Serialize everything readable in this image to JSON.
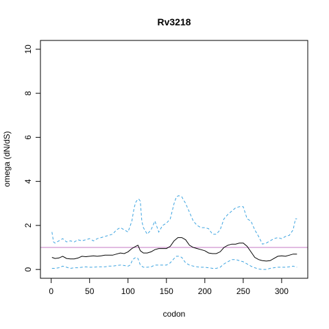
{
  "chart_data": {
    "type": "line",
    "title": "Rv3218",
    "xlabel": "codon",
    "ylabel": "omega (dN/dS)",
    "xlim": [
      -14,
      334
    ],
    "ylim": [
      -0.4,
      10.4
    ],
    "xticks": [
      0,
      50,
      100,
      150,
      200,
      250,
      300
    ],
    "yticks": [
      0,
      2,
      4,
      6,
      8,
      10
    ],
    "reference_line": {
      "y": 1,
      "color": "#c678c6"
    },
    "series": [
      {
        "role": "estimate",
        "color": "#000000",
        "style": "solid",
        "x": [
          1,
          5,
          10,
          15,
          20,
          25,
          30,
          35,
          40,
          45,
          50,
          55,
          60,
          65,
          70,
          75,
          80,
          85,
          90,
          95,
          100,
          105,
          110,
          113,
          116,
          120,
          125,
          130,
          135,
          140,
          145,
          150,
          155,
          160,
          165,
          170,
          175,
          180,
          185,
          190,
          195,
          200,
          205,
          210,
          215,
          220,
          225,
          230,
          235,
          240,
          245,
          250,
          255,
          260,
          265,
          270,
          275,
          280,
          285,
          290,
          295,
          300,
          305,
          310,
          315,
          320
        ],
        "y": [
          0.55,
          0.5,
          0.52,
          0.6,
          0.5,
          0.48,
          0.48,
          0.52,
          0.6,
          0.58,
          0.6,
          0.62,
          0.6,
          0.62,
          0.65,
          0.65,
          0.65,
          0.7,
          0.75,
          0.72,
          0.8,
          0.95,
          1.05,
          1.1,
          0.85,
          0.75,
          0.75,
          0.8,
          0.9,
          0.95,
          0.95,
          0.95,
          1.05,
          1.3,
          1.45,
          1.45,
          1.35,
          1.1,
          1.0,
          0.95,
          0.9,
          0.85,
          0.75,
          0.72,
          0.72,
          0.8,
          1.0,
          1.1,
          1.15,
          1.15,
          1.2,
          1.2,
          1.05,
          0.8,
          0.55,
          0.45,
          0.4,
          0.38,
          0.4,
          0.5,
          0.6,
          0.62,
          0.6,
          0.65,
          0.7,
          0.7
        ]
      },
      {
        "role": "upper_bound",
        "color": "#3ba3e0",
        "style": "dashed",
        "x": [
          1,
          3,
          5,
          10,
          15,
          20,
          25,
          30,
          35,
          40,
          45,
          50,
          55,
          60,
          65,
          70,
          75,
          80,
          85,
          90,
          95,
          100,
          105,
          108,
          110,
          112,
          114,
          116,
          118,
          120,
          125,
          130,
          135,
          140,
          145,
          150,
          155,
          160,
          163,
          166,
          170,
          175,
          180,
          185,
          190,
          195,
          200,
          205,
          210,
          215,
          220,
          225,
          230,
          235,
          240,
          245,
          250,
          255,
          260,
          265,
          270,
          275,
          280,
          285,
          290,
          295,
          300,
          305,
          310,
          315,
          318,
          320
        ],
        "y": [
          1.7,
          1.25,
          1.2,
          1.3,
          1.4,
          1.25,
          1.3,
          1.25,
          1.35,
          1.3,
          1.35,
          1.4,
          1.3,
          1.4,
          1.45,
          1.5,
          1.55,
          1.6,
          1.8,
          1.9,
          1.8,
          1.7,
          2.2,
          2.8,
          3.05,
          3.15,
          3.2,
          3.1,
          2.2,
          1.9,
          1.6,
          1.8,
          2.2,
          1.7,
          2.0,
          2.1,
          2.3,
          3.0,
          3.3,
          3.35,
          3.3,
          3.0,
          2.6,
          2.2,
          2.0,
          1.9,
          1.9,
          1.85,
          1.6,
          1.6,
          1.8,
          2.3,
          2.5,
          2.65,
          2.8,
          2.85,
          2.85,
          2.3,
          2.2,
          1.8,
          1.5,
          1.15,
          1.2,
          1.3,
          1.4,
          1.45,
          1.4,
          1.5,
          1.55,
          1.8,
          2.3,
          2.3
        ]
      },
      {
        "role": "lower_bound",
        "color": "#3ba3e0",
        "style": "dashed",
        "x": [
          1,
          5,
          10,
          15,
          20,
          25,
          30,
          35,
          40,
          45,
          50,
          55,
          60,
          65,
          70,
          75,
          80,
          85,
          90,
          95,
          100,
          103,
          106,
          110,
          113,
          116,
          120,
          125,
          130,
          135,
          140,
          145,
          150,
          155,
          160,
          163,
          166,
          170,
          175,
          180,
          185,
          190,
          195,
          200,
          205,
          210,
          215,
          220,
          225,
          230,
          235,
          240,
          245,
          250,
          255,
          260,
          265,
          270,
          275,
          280,
          285,
          290,
          295,
          300,
          305,
          310,
          315,
          320
        ],
        "y": [
          0.05,
          0.05,
          0.08,
          0.15,
          0.1,
          0.05,
          0.08,
          0.08,
          0.1,
          0.12,
          0.1,
          0.1,
          0.12,
          0.12,
          0.12,
          0.15,
          0.15,
          0.18,
          0.2,
          0.18,
          0.15,
          0.2,
          0.45,
          0.55,
          0.5,
          0.2,
          0.1,
          0.1,
          0.12,
          0.2,
          0.2,
          0.2,
          0.2,
          0.3,
          0.5,
          0.6,
          0.6,
          0.55,
          0.3,
          0.2,
          0.15,
          0.12,
          0.1,
          0.1,
          0.08,
          0.05,
          0.05,
          0.1,
          0.25,
          0.35,
          0.45,
          0.45,
          0.4,
          0.35,
          0.25,
          0.15,
          0.08,
          0.02,
          0.0,
          0.0,
          0.05,
          0.08,
          0.1,
          0.1,
          0.1,
          0.12,
          0.15,
          0.1
        ]
      }
    ]
  }
}
